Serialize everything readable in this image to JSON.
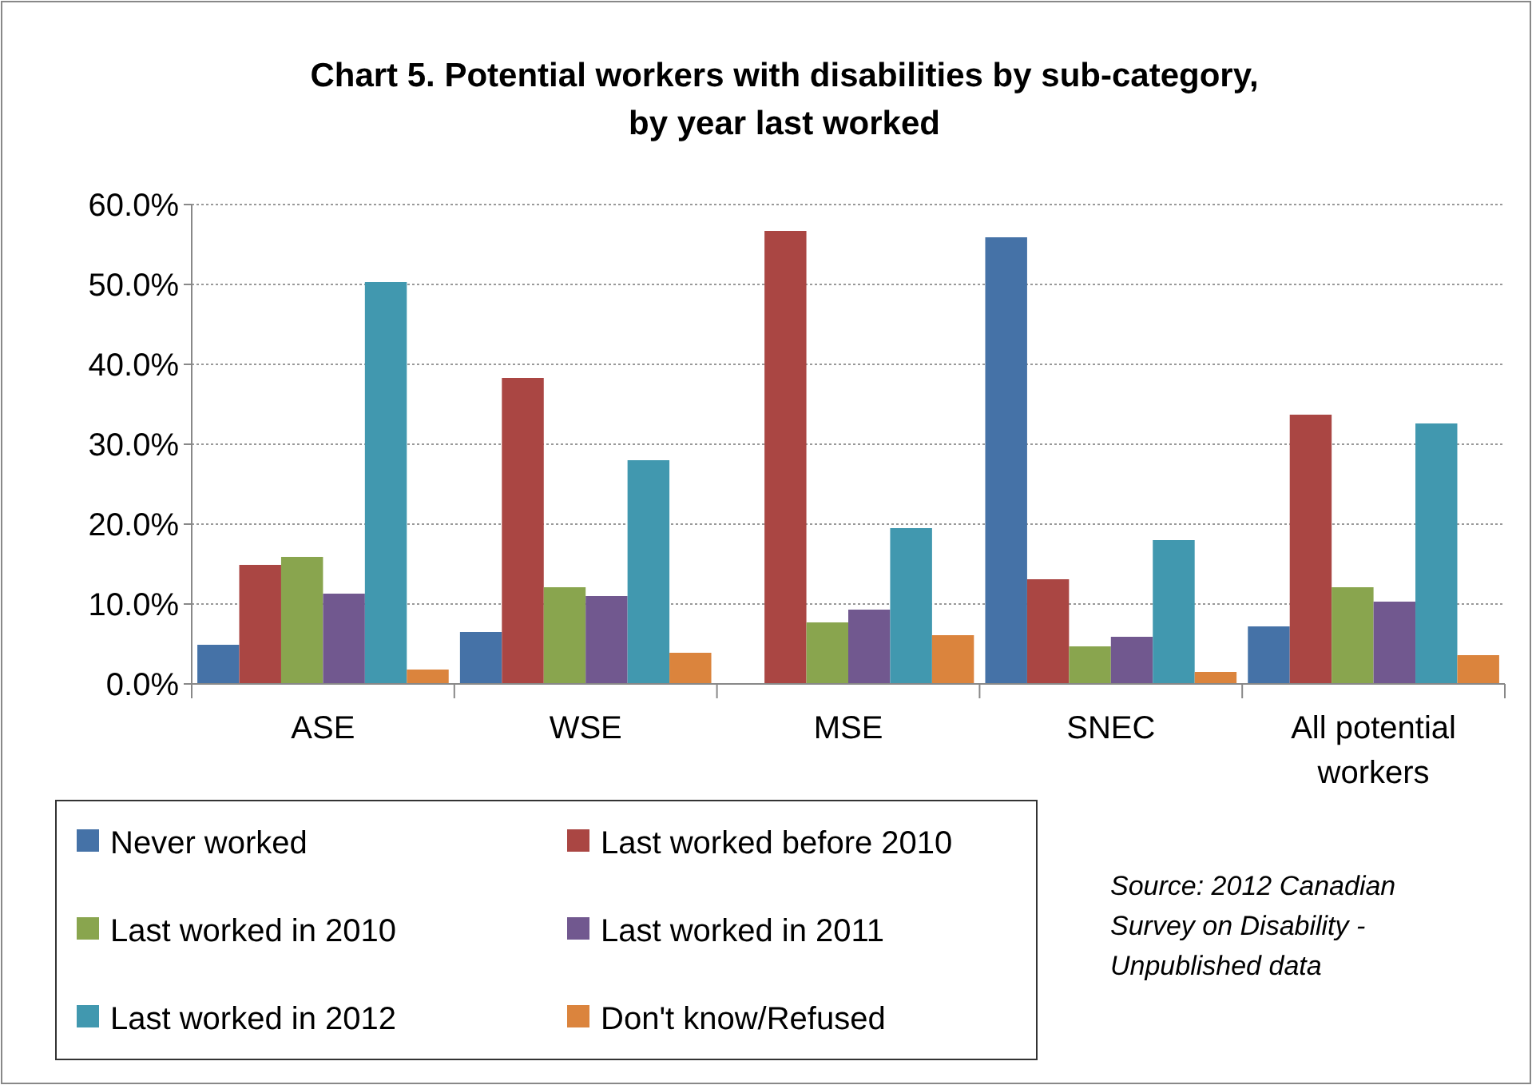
{
  "chart_data": {
    "type": "bar",
    "title": "Chart 5. Potential workers with disabilities by sub-category, by year last worked",
    "categories": [
      "ASE",
      "WSE",
      "MSE",
      "SNEC",
      "All potential workers"
    ],
    "series": [
      {
        "name": "Never worked",
        "color": "#4572a7",
        "values": [
          4.9,
          6.5,
          null,
          55.9,
          7.2
        ]
      },
      {
        "name": "Last worked before 2010",
        "color": "#aa4643",
        "values": [
          14.9,
          38.3,
          56.7,
          13.1,
          33.7
        ]
      },
      {
        "name": "Last worked in 2010",
        "color": "#89a54e",
        "values": [
          15.9,
          12.1,
          7.7,
          4.7,
          12.1
        ]
      },
      {
        "name": "Last worked in 2011",
        "color": "#71588f",
        "values": [
          11.3,
          11.0,
          9.3,
          5.9,
          10.3
        ]
      },
      {
        "name": "Last worked in 2012",
        "color": "#4198af",
        "values": [
          50.3,
          28.0,
          19.5,
          18.0,
          32.6
        ]
      },
      {
        "name": "Don't know/Refused",
        "color": "#db843d",
        "values": [
          1.8,
          3.9,
          6.1,
          1.5,
          3.6
        ]
      }
    ],
    "ylim": [
      0,
      60
    ],
    "yticks": [
      {
        "value": 0,
        "label": "0.0%"
      },
      {
        "value": 10,
        "label": "10.0%"
      },
      {
        "value": 20,
        "label": "20.0%"
      },
      {
        "value": 30,
        "label": "30.0%"
      },
      {
        "value": 40,
        "label": "40.0%"
      },
      {
        "value": 50,
        "label": "50.0%"
      },
      {
        "value": 60,
        "label": "60.0%"
      }
    ],
    "grid": "y",
    "legend": "bottom",
    "annotations": [
      "Source: 2012 Canadian Survey on Disability - Unpublished data"
    ]
  }
}
